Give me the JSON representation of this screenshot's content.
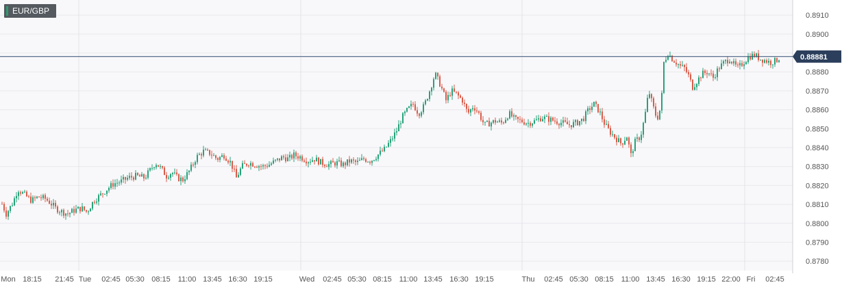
{
  "symbol": "EUR/GBP",
  "colors": {
    "up": "#26a17a",
    "down": "#d85c4a",
    "wick": "#333333",
    "price_line": "#2e4a6e",
    "price_tag_bg": "#2b3e5b",
    "grid": "#e9e9ee",
    "plot_bg": "#f8f8fa"
  },
  "chart_data": {
    "type": "candlestick",
    "title": "EUR/GBP",
    "ylim": [
      0.8775,
      0.8918
    ],
    "y_ticks": [
      "0.8780",
      "0.8790",
      "0.8800",
      "0.8810",
      "0.8820",
      "0.8830",
      "0.8840",
      "0.8850",
      "0.8860",
      "0.8870",
      "0.8880",
      "0.8890",
      "0.8900",
      "0.8910"
    ],
    "x_ticks": [
      "Mon",
      "18:15",
      "21:45",
      "Tue",
      "02:45",
      "05:30",
      "08:15",
      "11:00",
      "13:45",
      "16:30",
      "19:15",
      "Wed",
      "02:45",
      "05:30",
      "08:15",
      "11:00",
      "13:45",
      "16:30",
      "19:15",
      "Thu",
      "02:45",
      "05:30",
      "08:15",
      "11:00",
      "13:45",
      "16:30",
      "19:15",
      "22:00",
      "Fri",
      "02:45"
    ],
    "current_price": "0.88881",
    "grid": true,
    "price_path": [
      [
        0,
        0.8812
      ],
      [
        8,
        0.8805
      ],
      [
        18,
        0.8811
      ],
      [
        25,
        0.8818
      ],
      [
        35,
        0.8815
      ],
      [
        45,
        0.8812
      ],
      [
        55,
        0.8814
      ],
      [
        65,
        0.8813
      ],
      [
        72,
        0.8811
      ],
      [
        80,
        0.8808
      ],
      [
        90,
        0.8806
      ],
      [
        98,
        0.8805
      ],
      [
        108,
        0.8807
      ],
      [
        118,
        0.8808
      ],
      [
        126,
        0.8806
      ],
      [
        136,
        0.8812
      ],
      [
        146,
        0.8815
      ],
      [
        155,
        0.8818
      ],
      [
        165,
        0.8821
      ],
      [
        175,
        0.8822
      ],
      [
        186,
        0.8824
      ],
      [
        198,
        0.8825
      ],
      [
        210,
        0.8824
      ],
      [
        218,
        0.8828
      ],
      [
        226,
        0.8832
      ],
      [
        234,
        0.8829
      ],
      [
        242,
        0.8825
      ],
      [
        250,
        0.8827
      ],
      [
        258,
        0.8824
      ],
      [
        266,
        0.8823
      ],
      [
        276,
        0.8828
      ],
      [
        286,
        0.8835
      ],
      [
        296,
        0.8838
      ],
      [
        306,
        0.8837
      ],
      [
        316,
        0.8834
      ],
      [
        326,
        0.8836
      ],
      [
        336,
        0.8832
      ],
      [
        344,
        0.8824
      ],
      [
        352,
        0.883
      ],
      [
        362,
        0.8832
      ],
      [
        372,
        0.8831
      ],
      [
        382,
        0.883
      ],
      [
        392,
        0.8831
      ],
      [
        402,
        0.8833
      ],
      [
        412,
        0.8835
      ],
      [
        420,
        0.8834
      ],
      [
        428,
        0.8836
      ],
      [
        438,
        0.8835
      ],
      [
        448,
        0.8833
      ],
      [
        458,
        0.8834
      ],
      [
        468,
        0.8832
      ],
      [
        478,
        0.8831
      ],
      [
        490,
        0.8832
      ],
      [
        500,
        0.8831
      ],
      [
        510,
        0.8833
      ],
      [
        520,
        0.8832
      ],
      [
        530,
        0.8834
      ],
      [
        540,
        0.8833
      ],
      [
        550,
        0.8836
      ],
      [
        560,
        0.8839
      ],
      [
        570,
        0.8844
      ],
      [
        578,
        0.8849
      ],
      [
        586,
        0.8856
      ],
      [
        594,
        0.886
      ],
      [
        602,
        0.8863
      ],
      [
        610,
        0.8858
      ],
      [
        618,
        0.8862
      ],
      [
        626,
        0.887
      ],
      [
        634,
        0.8879
      ],
      [
        642,
        0.8873
      ],
      [
        650,
        0.8865
      ],
      [
        658,
        0.887
      ],
      [
        666,
        0.8868
      ],
      [
        674,
        0.8865
      ],
      [
        682,
        0.8858
      ],
      [
        690,
        0.8862
      ],
      [
        698,
        0.8858
      ],
      [
        706,
        0.8852
      ],
      [
        714,
        0.8853
      ],
      [
        722,
        0.8854
      ],
      [
        732,
        0.8853
      ],
      [
        742,
        0.8858
      ],
      [
        750,
        0.8855
      ],
      [
        760,
        0.8854
      ],
      [
        770,
        0.8853
      ],
      [
        780,
        0.8854
      ],
      [
        790,
        0.8856
      ],
      [
        800,
        0.8855
      ],
      [
        810,
        0.8854
      ],
      [
        820,
        0.8853
      ],
      [
        830,
        0.8852
      ],
      [
        840,
        0.8853
      ],
      [
        850,
        0.8855
      ],
      [
        858,
        0.886
      ],
      [
        866,
        0.8863
      ],
      [
        874,
        0.8859
      ],
      [
        882,
        0.8852
      ],
      [
        890,
        0.8848
      ],
      [
        898,
        0.8845
      ],
      [
        906,
        0.8842
      ],
      [
        914,
        0.8846
      ],
      [
        920,
        0.8836
      ],
      [
        926,
        0.8843
      ],
      [
        934,
        0.8846
      ],
      [
        940,
        0.8856
      ],
      [
        946,
        0.887
      ],
      [
        952,
        0.8862
      ],
      [
        958,
        0.8855
      ],
      [
        964,
        0.8862
      ],
      [
        968,
        0.8885
      ],
      [
        974,
        0.889
      ],
      [
        980,
        0.8887
      ],
      [
        986,
        0.8885
      ],
      [
        992,
        0.8883
      ],
      [
        998,
        0.8882
      ],
      [
        1004,
        0.8878
      ],
      [
        1010,
        0.8872
      ],
      [
        1016,
        0.8875
      ],
      [
        1024,
        0.8879
      ],
      [
        1032,
        0.888
      ],
      [
        1040,
        0.8877
      ],
      [
        1048,
        0.8882
      ],
      [
        1056,
        0.8885
      ],
      [
        1064,
        0.8887
      ],
      [
        1070,
        0.8884
      ],
      [
        1076,
        0.8882
      ],
      [
        1084,
        0.8885
      ],
      [
        1092,
        0.8888
      ],
      [
        1100,
        0.8889
      ],
      [
        1108,
        0.8887
      ],
      [
        1116,
        0.8886
      ],
      [
        1124,
        0.8885
      ],
      [
        1132,
        0.8886
      ],
      [
        1138,
        0.8888
      ]
    ]
  }
}
